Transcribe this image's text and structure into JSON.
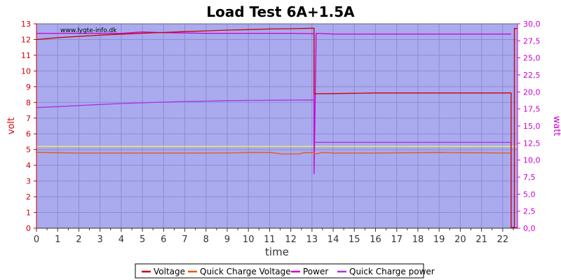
{
  "chart_data": {
    "type": "line",
    "title": "Load Test 6A+1.5A",
    "watermark": "www.lygte-info.dk",
    "xlabel": "time",
    "ylabel_left": "volt",
    "ylabel_right": "watt",
    "xlim": [
      0,
      22.7
    ],
    "ylim_left": [
      0,
      13
    ],
    "ylim_right": [
      0,
      30
    ],
    "x_ticks": [
      "0",
      "1",
      "2",
      "3",
      "4",
      "5",
      "6",
      "7",
      "8",
      "9",
      "10",
      "11",
      "12",
      "13",
      "14",
      "15",
      "16",
      "17",
      "18",
      "19",
      "20",
      "21",
      "22"
    ],
    "y_left_ticks": [
      "0",
      "1",
      "2",
      "3",
      "4",
      "5",
      "6",
      "7",
      "8",
      "9",
      "10",
      "11",
      "12",
      "13"
    ],
    "y_right_ticks": [
      "0,0",
      "2,5",
      "5,0",
      "7,5",
      "10,0",
      "12,5",
      "15,0",
      "17,5",
      "20,0",
      "22,5",
      "25,0",
      "27,5",
      "30,0"
    ],
    "grid": true,
    "legend_position": "bottom",
    "colors": {
      "plot_bg": "#aaaaee",
      "grid": "#8c8cd6",
      "voltage": "#cc0000",
      "qc_voltage": "#ee5500",
      "power": "#cc00cc",
      "qc_power": "#aa33dd",
      "yellow_ref": "#eeee55",
      "left_axis": "#cc0000",
      "right_axis": "#cc00cc"
    },
    "series": [
      {
        "name": "Voltage",
        "axis": "left",
        "color": "#cc0000",
        "points": [
          [
            0,
            12.0
          ],
          [
            1,
            12.12
          ],
          [
            2,
            12.2
          ],
          [
            3,
            12.28
          ],
          [
            4,
            12.34
          ],
          [
            5,
            12.4
          ],
          [
            6,
            12.45
          ],
          [
            7,
            12.5
          ],
          [
            8,
            12.55
          ],
          [
            9,
            12.6
          ],
          [
            10,
            12.63
          ],
          [
            11,
            12.67
          ],
          [
            12,
            12.69
          ],
          [
            13.1,
            12.72
          ],
          [
            13.1,
            8.55
          ],
          [
            14,
            8.56
          ],
          [
            15,
            8.58
          ],
          [
            16,
            8.6
          ],
          [
            17,
            8.6
          ],
          [
            18,
            8.6
          ],
          [
            19,
            8.6
          ],
          [
            20,
            8.6
          ],
          [
            21,
            8.6
          ],
          [
            22.4,
            8.6
          ],
          [
            22.4,
            0.05
          ],
          [
            22.55,
            0.05
          ],
          [
            22.55,
            12.7
          ],
          [
            22.7,
            12.7
          ]
        ]
      },
      {
        "name": "Quick Charge Voltage",
        "axis": "left",
        "color": "#ee5500",
        "points": [
          [
            0,
            4.83
          ],
          [
            0.8,
            4.8
          ],
          [
            2,
            4.78
          ],
          [
            4,
            4.78
          ],
          [
            6,
            4.78
          ],
          [
            8,
            4.78
          ],
          [
            9.5,
            4.79
          ],
          [
            10,
            4.82
          ],
          [
            11,
            4.82
          ],
          [
            11.6,
            4.72
          ],
          [
            12.4,
            4.72
          ],
          [
            12.6,
            4.8
          ],
          [
            13.1,
            4.82
          ],
          [
            13.1,
            4.7
          ],
          [
            13.5,
            4.82
          ],
          [
            14,
            4.78
          ],
          [
            16,
            4.78
          ],
          [
            18,
            4.8
          ],
          [
            19,
            4.82
          ],
          [
            20,
            4.8
          ],
          [
            22.4,
            4.78
          ]
        ]
      },
      {
        "name": "Power",
        "axis": "right",
        "color": "#cc00cc",
        "points": [
          [
            0,
            28.6
          ],
          [
            2,
            28.6
          ],
          [
            4,
            28.6
          ],
          [
            4.5,
            28.7
          ],
          [
            5,
            28.8
          ],
          [
            6,
            28.7
          ],
          [
            8,
            28.6
          ],
          [
            10,
            28.6
          ],
          [
            12,
            28.6
          ],
          [
            13.1,
            28.55
          ],
          [
            13.1,
            8.0
          ],
          [
            13.2,
            28.6
          ],
          [
            14,
            28.5
          ],
          [
            16,
            28.5
          ],
          [
            18,
            28.5
          ],
          [
            20,
            28.5
          ],
          [
            22.4,
            28.5
          ]
        ]
      },
      {
        "name": "Quick Charge power",
        "axis": "right",
        "color": "#aa33dd",
        "points": [
          [
            0,
            17.7
          ],
          [
            1,
            17.85
          ],
          [
            2,
            18.0
          ],
          [
            3,
            18.15
          ],
          [
            4,
            18.3
          ],
          [
            5,
            18.4
          ],
          [
            6,
            18.5
          ],
          [
            7,
            18.6
          ],
          [
            8,
            18.65
          ],
          [
            9,
            18.72
          ],
          [
            10,
            18.75
          ],
          [
            11,
            18.78
          ],
          [
            12,
            18.8
          ],
          [
            13.1,
            18.82
          ],
          [
            13.1,
            12.6
          ],
          [
            14,
            12.6
          ],
          [
            16,
            12.6
          ],
          [
            18,
            12.6
          ],
          [
            20,
            12.6
          ],
          [
            22.4,
            12.6
          ],
          [
            22.4,
            0.1
          ],
          [
            22.7,
            0.1
          ]
        ]
      },
      {
        "name": "",
        "axis": "left",
        "color": "#eeee55",
        "points": [
          [
            0,
            5.2
          ],
          [
            22.7,
            5.2
          ]
        ]
      }
    ]
  }
}
